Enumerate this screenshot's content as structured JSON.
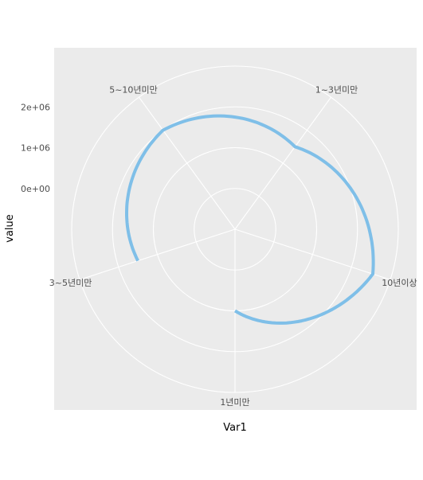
{
  "chart_data": {
    "type": "line",
    "coord": "polar",
    "xlabel": "Var1",
    "ylabel": "value",
    "categories": [
      "1년미만",
      "10년이상",
      "1~3년미만",
      "5~10년미만",
      "3~5년미만"
    ],
    "series": [
      {
        "values": [
          1000000,
          2550000,
          1500000,
          2000000,
          1500000
        ]
      }
    ],
    "y_ticks": [
      {
        "value": 0,
        "label": "0e+00"
      },
      {
        "value": 1000000,
        "label": "1e+06"
      },
      {
        "value": 2000000,
        "label": "2e+06"
      }
    ],
    "ylim": [
      -1000000,
      3000000
    ],
    "grid": true,
    "colors": {
      "line": "#7fbfe8",
      "panel": "#ebebeb",
      "grid": "#ffffff"
    }
  }
}
